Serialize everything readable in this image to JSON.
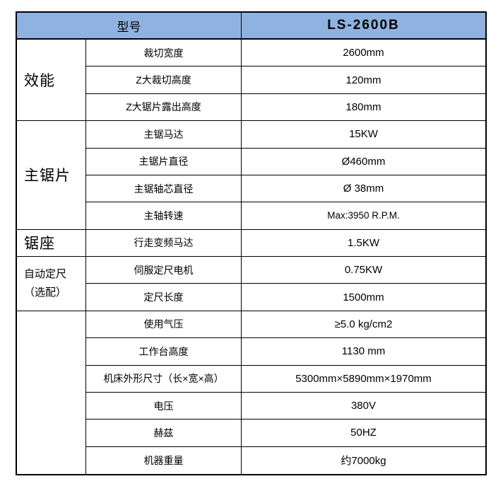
{
  "table": {
    "header": {
      "model_label": "型号",
      "model_value": "LS-2600B"
    },
    "groups": [
      {
        "label_lines": [
          "效能"
        ],
        "small": false,
        "rows": [
          {
            "name": "裁切宽度",
            "value": "2600mm"
          },
          {
            "name": "Z大裁切高度",
            "value": "120mm"
          },
          {
            "name": "Z大锯片露出高度",
            "value": "180mm"
          }
        ]
      },
      {
        "label_lines": [
          "主锯片"
        ],
        "small": false,
        "rows": [
          {
            "name": "主锯马达",
            "value": "15KW"
          },
          {
            "name": "主锯片直径",
            "value": "Ø460mm"
          },
          {
            "name": "主锯轴芯直径",
            "value": "Ø 38mm"
          },
          {
            "name": "主轴转速",
            "value": "Max:3950 R.P.M.",
            "value_small": true
          }
        ]
      },
      {
        "label_lines": [
          "锯座"
        ],
        "small": false,
        "rows": [
          {
            "name": "行走变频马达",
            "value": "1.5KW"
          }
        ]
      },
      {
        "label_lines": [
          "自动定尺",
          "（选配）"
        ],
        "small": true,
        "rows": [
          {
            "name": "伺服定尺电机",
            "value": "0.75KW"
          },
          {
            "name": "定尺长度",
            "value": "1500mm"
          }
        ]
      },
      {
        "label_lines": [],
        "small": false,
        "rows": [
          {
            "name": "使用气压",
            "value": "≥5.0 kg/cm2"
          },
          {
            "name": "工作台高度",
            "value": "1130 mm"
          },
          {
            "name": "机床外形尺寸（长×宽×高）",
            "value": "5300mm×5890mm×1970mm"
          },
          {
            "name": "电压",
            "value": "380V"
          },
          {
            "name": "赫兹",
            "value": "50HZ"
          },
          {
            "name": "机器重量",
            "value": "约7000kg"
          }
        ]
      }
    ],
    "colors": {
      "header_bg": "#8FB2E1",
      "border": "#000000",
      "text": "#000000"
    }
  }
}
